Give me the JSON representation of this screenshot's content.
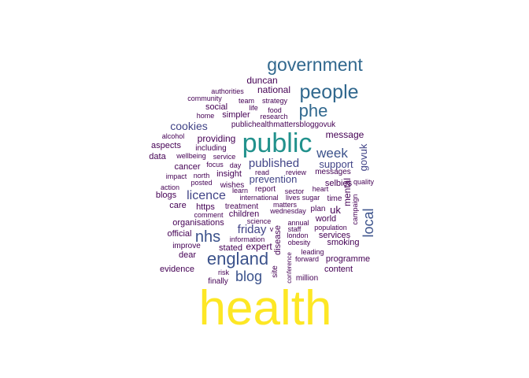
{
  "chart_data": {
    "type": "wordcloud",
    "colormap": "viridis",
    "words": [
      {
        "text": "health",
        "weight": 100,
        "color": "#fde725"
      },
      {
        "text": "public",
        "weight": 40,
        "color": "#21918c"
      },
      {
        "text": "government",
        "weight": 27,
        "color": "#31688e"
      },
      {
        "text": "people",
        "weight": 27,
        "color": "#31688e"
      },
      {
        "text": "phe",
        "weight": 24,
        "color": "#31688e"
      },
      {
        "text": "england",
        "weight": 22,
        "color": "#3b528b"
      },
      {
        "text": "local",
        "weight": 20,
        "color": "#3b528b"
      },
      {
        "text": "nhs",
        "weight": 20,
        "color": "#3b528b"
      },
      {
        "text": "blog",
        "weight": 18,
        "color": "#3b528b"
      },
      {
        "text": "week",
        "weight": 17,
        "color": "#3b528b"
      },
      {
        "text": "published",
        "weight": 16,
        "color": "#414487"
      },
      {
        "text": "licence",
        "weight": 15,
        "color": "#414487"
      },
      {
        "text": "cookies",
        "weight": 14,
        "color": "#414487"
      },
      {
        "text": "friday",
        "weight": 14,
        "color": "#414487"
      },
      {
        "text": "govuk",
        "weight": 13,
        "color": "#414487"
      },
      {
        "text": "support",
        "weight": 13,
        "color": "#414487"
      },
      {
        "text": "prevention",
        "weight": 13,
        "color": "#414487"
      },
      {
        "text": "duncan",
        "weight": 12,
        "color": "#440154"
      },
      {
        "text": "national",
        "weight": 12,
        "color": "#440154"
      },
      {
        "text": "providing",
        "weight": 11,
        "color": "#440154"
      },
      {
        "text": "message",
        "weight": 11,
        "color": "#440154"
      },
      {
        "text": "mental",
        "weight": 11,
        "color": "#440154"
      },
      {
        "text": "uk",
        "weight": 11,
        "color": "#440154"
      },
      {
        "text": "expert",
        "weight": 11,
        "color": "#440154"
      },
      {
        "text": "services",
        "weight": 11,
        "color": "#440154"
      },
      {
        "text": "content",
        "weight": 11,
        "color": "#440154"
      },
      {
        "text": "programme",
        "weight": 11,
        "color": "#440154"
      },
      {
        "text": "evidence",
        "weight": 11,
        "color": "#440154"
      },
      {
        "text": "organisations",
        "weight": 11,
        "color": "#440154"
      },
      {
        "text": "care",
        "weight": 11,
        "color": "#440154"
      },
      {
        "text": "https",
        "weight": 11,
        "color": "#440154"
      },
      {
        "text": "blogs",
        "weight": 11,
        "color": "#440154"
      },
      {
        "text": "aspects",
        "weight": 11,
        "color": "#440154"
      },
      {
        "text": "data",
        "weight": 11,
        "color": "#440154"
      },
      {
        "text": "cancer",
        "weight": 11,
        "color": "#440154"
      },
      {
        "text": "insight",
        "weight": 11,
        "color": "#440154"
      },
      {
        "text": "selbies",
        "weight": 11,
        "color": "#440154"
      },
      {
        "text": "children",
        "weight": 11,
        "color": "#440154"
      },
      {
        "text": "official",
        "weight": 11,
        "color": "#440154"
      },
      {
        "text": "improve",
        "weight": 11,
        "color": "#440154"
      },
      {
        "text": "dear",
        "weight": 11,
        "color": "#440154"
      },
      {
        "text": "finally",
        "weight": 11,
        "color": "#440154"
      },
      {
        "text": "site",
        "weight": 11,
        "color": "#440154"
      },
      {
        "text": "disease",
        "weight": 11,
        "color": "#440154"
      },
      {
        "text": "smoking",
        "weight": 11,
        "color": "#440154"
      },
      {
        "text": "world",
        "weight": 11,
        "color": "#440154"
      },
      {
        "text": "simpler",
        "weight": 11,
        "color": "#440154"
      },
      {
        "text": "social",
        "weight": 11,
        "color": "#440154"
      },
      {
        "text": "stated",
        "weight": 11,
        "color": "#440154"
      },
      {
        "text": "million",
        "weight": 10,
        "color": "#440154"
      },
      {
        "text": "report",
        "weight": 10,
        "color": "#440154"
      },
      {
        "text": "wishes",
        "weight": 10,
        "color": "#440154"
      },
      {
        "text": "treatment",
        "weight": 10,
        "color": "#440154"
      },
      {
        "text": "including",
        "weight": 10,
        "color": "#440154"
      },
      {
        "text": "messages",
        "weight": 10,
        "color": "#440154"
      },
      {
        "text": "publichealthmattersbloggovuk",
        "weight": 10,
        "color": "#440154"
      },
      {
        "text": "time",
        "weight": 10,
        "color": "#440154"
      },
      {
        "text": "plan",
        "weight": 10,
        "color": "#440154"
      },
      {
        "text": "campaign",
        "weight": 9,
        "color": "#440154"
      },
      {
        "text": "strategy",
        "weight": 9,
        "color": "#440154"
      },
      {
        "text": "team",
        "weight": 9,
        "color": "#440154"
      },
      {
        "text": "life",
        "weight": 9,
        "color": "#440154"
      },
      {
        "text": "food",
        "weight": 9,
        "color": "#440154"
      },
      {
        "text": "research",
        "weight": 9,
        "color": "#440154"
      },
      {
        "text": "authorities",
        "weight": 9,
        "color": "#440154"
      },
      {
        "text": "community",
        "weight": 9,
        "color": "#440154"
      },
      {
        "text": "home",
        "weight": 9,
        "color": "#440154"
      },
      {
        "text": "alcohol",
        "weight": 9,
        "color": "#440154"
      },
      {
        "text": "wellbeing",
        "weight": 9,
        "color": "#440154"
      },
      {
        "text": "service",
        "weight": 9,
        "color": "#440154"
      },
      {
        "text": "focus",
        "weight": 9,
        "color": "#440154"
      },
      {
        "text": "day",
        "weight": 9,
        "color": "#440154"
      },
      {
        "text": "impact",
        "weight": 9,
        "color": "#440154"
      },
      {
        "text": "north",
        "weight": 9,
        "color": "#440154"
      },
      {
        "text": "action",
        "weight": 9,
        "color": "#440154"
      },
      {
        "text": "posted",
        "weight": 9,
        "color": "#440154"
      },
      {
        "text": "read",
        "weight": 9,
        "color": "#440154"
      },
      {
        "text": "review",
        "weight": 9,
        "color": "#440154"
      },
      {
        "text": "learn",
        "weight": 9,
        "color": "#440154"
      },
      {
        "text": "international",
        "weight": 9,
        "color": "#440154"
      },
      {
        "text": "sector",
        "weight": 9,
        "color": "#440154"
      },
      {
        "text": "heart",
        "weight": 9,
        "color": "#440154"
      },
      {
        "text": "lives",
        "weight": 9,
        "color": "#440154"
      },
      {
        "text": "sugar",
        "weight": 9,
        "color": "#440154"
      },
      {
        "text": "quality",
        "weight": 9,
        "color": "#440154"
      },
      {
        "text": "matters",
        "weight": 9,
        "color": "#440154"
      },
      {
        "text": "wednesday",
        "weight": 9,
        "color": "#440154"
      },
      {
        "text": "comment",
        "weight": 9,
        "color": "#440154"
      },
      {
        "text": "science",
        "weight": 9,
        "color": "#440154"
      },
      {
        "text": "annual",
        "weight": 9,
        "color": "#440154"
      },
      {
        "text": "v",
        "weight": 9,
        "color": "#440154"
      },
      {
        "text": "staff",
        "weight": 9,
        "color": "#440154"
      },
      {
        "text": "population",
        "weight": 9,
        "color": "#440154"
      },
      {
        "text": "london",
        "weight": 9,
        "color": "#440154"
      },
      {
        "text": "obesity",
        "weight": 9,
        "color": "#440154"
      },
      {
        "text": "information",
        "weight": 9,
        "color": "#440154"
      },
      {
        "text": "leading",
        "weight": 9,
        "color": "#440154"
      },
      {
        "text": "forward",
        "weight": 9,
        "color": "#440154"
      },
      {
        "text": "risk",
        "weight": 9,
        "color": "#440154"
      },
      {
        "text": "conference",
        "weight": 8,
        "color": "#440154"
      }
    ]
  }
}
